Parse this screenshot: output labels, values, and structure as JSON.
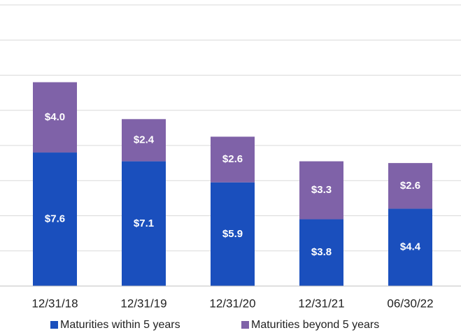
{
  "chart_data": {
    "type": "stacked_bar",
    "categories": [
      "12/31/18",
      "12/31/19",
      "12/31/20",
      "12/31/21",
      "06/30/22"
    ],
    "series": [
      {
        "name": "Maturities within 5 years",
        "color": "#1a4fbd",
        "values": [
          7.6,
          7.1,
          5.9,
          3.8,
          4.4
        ],
        "value_labels": [
          "$7.6",
          "$7.1",
          "$5.9",
          "$3.8",
          "$4.4"
        ]
      },
      {
        "name": "Maturities beyond 5 years",
        "color": "#7f62a8",
        "values": [
          4.0,
          2.4,
          2.6,
          3.3,
          2.6
        ],
        "value_labels": [
          "$4.0",
          "$2.4",
          "$2.6",
          "$3.3",
          "$2.6"
        ]
      }
    ],
    "ylim": [
      0,
      16
    ],
    "yticks": [
      0,
      2,
      4,
      6,
      8,
      10,
      12,
      14,
      16
    ],
    "grid": true,
    "legend": "bottom"
  }
}
